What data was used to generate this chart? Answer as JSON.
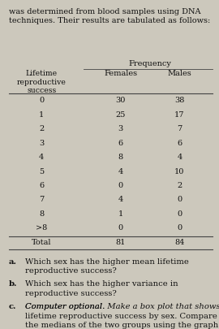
{
  "header_text": "was determined from blood samples using DNA\ntechniques. Their results are tabulated as follows:",
  "freq_header": "Frequency",
  "col1_header": "Lifetime\nreproductive\nsuccess",
  "col2_header": "Females",
  "col3_header": "Males",
  "rows": [
    [
      "0",
      "30",
      "38"
    ],
    [
      "1",
      "25",
      "17"
    ],
    [
      "2",
      "3",
      "7"
    ],
    [
      "3",
      "6",
      "6"
    ],
    [
      "4",
      "8",
      "4"
    ],
    [
      "5",
      "4",
      "10"
    ],
    [
      "6",
      "0",
      "2"
    ],
    [
      "7",
      "4",
      "0"
    ],
    [
      "8",
      "1",
      "0"
    ],
    [
      ">8",
      "0",
      "0"
    ]
  ],
  "total_row": [
    "Total",
    "81",
    "84"
  ],
  "q_labels": [
    "a.",
    "b.",
    "c."
  ],
  "q_texts": [
    "Which sex has the higher mean lifetime\nreproductive success?",
    "Which sex has the higher variance in\nreproductive success?",
    "Computer optional. Make a box plot that shows\nlifetime reproductive success by sex. Compare\nthe medians of the two groups using the graph.\nAre the medians very different?"
  ],
  "bg_color": "#ccc8bc",
  "text_color": "#111111",
  "line_color": "#444444",
  "header_fontsize": 7.0,
  "table_fontsize": 7.0,
  "question_fontsize": 7.2
}
